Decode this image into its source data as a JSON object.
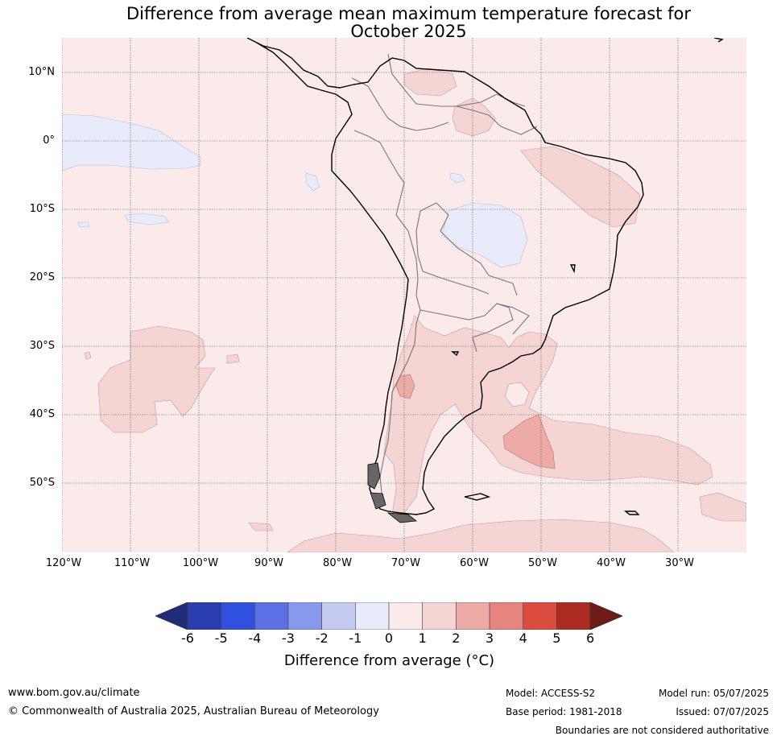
{
  "title_line1": "Difference from average mean maximum temperature forecast for",
  "title_line2": "October 2025",
  "lat_labels": [
    "10°N",
    "0°",
    "10°S",
    "20°S",
    "30°S",
    "40°S",
    "50°S"
  ],
  "lon_labels": [
    "120°W",
    "110°W",
    "100°W",
    "90°W",
    "80°W",
    "70°W",
    "60°W",
    "50°W",
    "40°W",
    "30°W"
  ],
  "colorbar": {
    "ticks": [
      "-6",
      "-5",
      "-4",
      "-3",
      "-2",
      "-1",
      "0",
      "1",
      "2",
      "3",
      "4",
      "5",
      "6"
    ],
    "colors": [
      "#1f2d7a",
      "#2a3db0",
      "#3050e0",
      "#5b70e6",
      "#8799ec",
      "#c4cbf3",
      "#e8ebfa",
      "#fbeaea",
      "#f5d5d3",
      "#edaba6",
      "#e5857d",
      "#db4b3e",
      "#ad2b20",
      "#6e1a16"
    ],
    "label": "Difference from average (°C)"
  },
  "footer": {
    "url": "www.bom.gov.au/climate",
    "copyright": "© Commonwealth of Australia 2025, Australian Bureau of Meteorology",
    "model": "Model: ACCESS-S2",
    "base_period": "Base period: 1981-2018",
    "model_run": "Model run: 05/07/2025",
    "issued": "Issued: 07/07/2025",
    "disclaimer": "Boundaries are not considered authoritative"
  }
}
